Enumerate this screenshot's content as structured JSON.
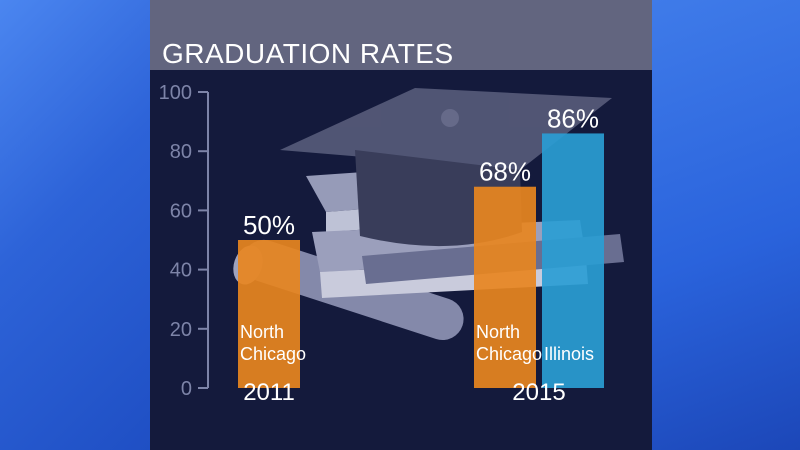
{
  "colors": {
    "north_chicago": "#e8861f",
    "illinois": "#2a9dd4",
    "axis": "#7d84a8",
    "text": "#ffffff"
  },
  "chart_data": {
    "type": "bar",
    "title": "GRADUATION RATES",
    "ylim": [
      0,
      100
    ],
    "yticks": [
      0,
      20,
      40,
      60,
      80,
      100
    ],
    "groups": [
      {
        "label": "2011",
        "bars": [
          {
            "name": "North Chicago",
            "value": 50,
            "value_label": "50%",
            "color": "#e8861f"
          }
        ]
      },
      {
        "label": "2015",
        "bars": [
          {
            "name": "North Chicago",
            "value": 68,
            "value_label": "68%",
            "color": "#e8861f"
          },
          {
            "name": "Illinois",
            "value": 86,
            "value_label": "86%",
            "color": "#2a9dd4"
          }
        ]
      }
    ]
  }
}
